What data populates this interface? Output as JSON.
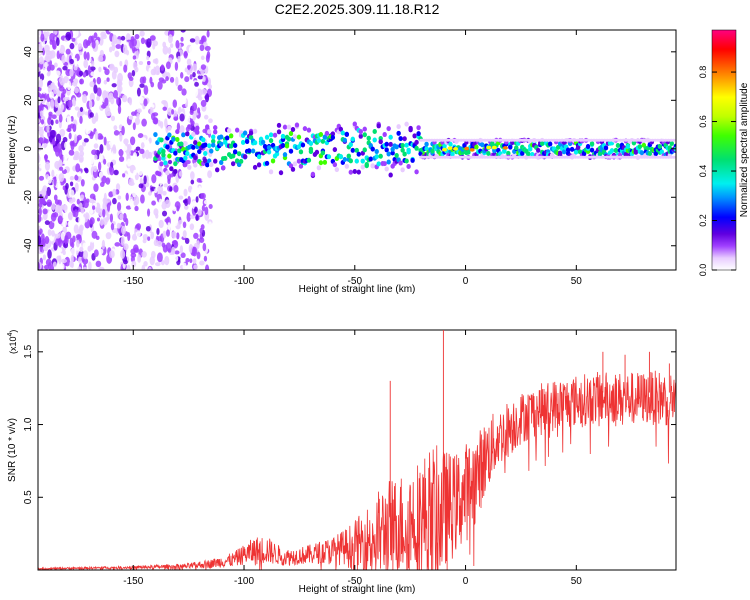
{
  "figure": {
    "title": "C2E2.2025.309.11.18.R12"
  },
  "chart_data": [
    {
      "type": "heatmap",
      "xlabel": "Height of straight line (km)",
      "ylabel": "Frequency (Hz)",
      "xlim": [
        -193,
        95
      ],
      "ylim": [
        -50,
        49
      ],
      "x_ticks": [
        -150,
        -100,
        -50,
        0,
        50
      ],
      "x_tick_labels": [
        "-150",
        "-100",
        "-50",
        "0",
        "50"
      ],
      "y_ticks": [
        -40,
        -20,
        0,
        20,
        40
      ],
      "y_tick_labels": [
        "-40",
        "-20",
        "0",
        "20",
        "40"
      ],
      "colorbar": {
        "label": "Normalized spectral amplitude",
        "range": [
          0,
          0.97
        ],
        "ticks": [
          0.0,
          0.2,
          0.4,
          0.6,
          0.8
        ],
        "tick_labels": [
          "0.0",
          "0.2",
          "0.4",
          "0.6",
          "0.8"
        ],
        "colors": [
          "#ffffff",
          "#e8ccff",
          "#a040ff",
          "#6000e0",
          "#0000ff",
          "#0090ff",
          "#00f0f0",
          "#00e070",
          "#40ff00",
          "#c0ff00",
          "#ffff00",
          "#ff8000",
          "#ff0000",
          "#ff0080"
        ]
      },
      "features": [
        {
          "region": "scattered noise",
          "x_range": [
            -193,
            -115
          ],
          "y_range": [
            -50,
            49
          ],
          "amplitude": 0.1
        },
        {
          "region": "central band",
          "x_range": [
            -140,
            95
          ],
          "center_frequency": 0,
          "half_width": 4,
          "amplitude": 0.45
        },
        {
          "region": "strong peaks",
          "x_range": [
            -12,
            20
          ],
          "center_frequency": 0,
          "amplitude": 0.85
        }
      ]
    },
    {
      "type": "line",
      "xlabel": "Height of straight line (km)",
      "ylabel": "SNR (10 * v/v)",
      "y_multiplier": "(x10",
      "y_multiplier_exp": "4",
      "y_multiplier_close": ")",
      "xlim": [
        -193,
        95
      ],
      "ylim": [
        0,
        1.65
      ],
      "x_ticks": [
        -150,
        -100,
        -50,
        0,
        50
      ],
      "x_tick_labels": [
        "-150",
        "-100",
        "-50",
        "0",
        "50"
      ],
      "y_ticks": [
        0.5,
        1.0,
        1.5
      ],
      "y_tick_labels": [
        "0.5",
        "1.0",
        "1.5"
      ],
      "color": "#ee3333",
      "envelope": {
        "x": [
          -193,
          -150,
          -125,
          -115,
          -105,
          -100,
          -95,
          -90,
          -85,
          -80,
          -75,
          -70,
          -65,
          -60,
          -55,
          -50,
          -45,
          -40,
          -35,
          -30,
          -25,
          -20,
          -15,
          -10,
          -5,
          0,
          5,
          10,
          15,
          20,
          25,
          30,
          40,
          50,
          60,
          70,
          80,
          95
        ],
        "y_mean": [
          0.01,
          0.02,
          0.03,
          0.05,
          0.08,
          0.12,
          0.15,
          0.16,
          0.12,
          0.1,
          0.11,
          0.12,
          0.14,
          0.15,
          0.18,
          0.2,
          0.25,
          0.3,
          0.35,
          0.38,
          0.42,
          0.45,
          0.47,
          0.48,
          0.52,
          0.6,
          0.7,
          0.85,
          0.95,
          1.02,
          1.08,
          1.12,
          1.17,
          1.2,
          1.22,
          1.22,
          1.22,
          1.22
        ],
        "y_spread": [
          0.005,
          0.01,
          0.02,
          0.03,
          0.05,
          0.07,
          0.1,
          0.1,
          0.07,
          0.06,
          0.06,
          0.07,
          0.08,
          0.1,
          0.12,
          0.18,
          0.22,
          0.3,
          0.35,
          0.35,
          0.38,
          0.42,
          0.5,
          0.45,
          0.35,
          0.35,
          0.3,
          0.25,
          0.2,
          0.2,
          0.18,
          0.18,
          0.18,
          0.18,
          0.18,
          0.18,
          0.18,
          0.2
        ]
      },
      "spikes": [
        {
          "x": -10,
          "y": 1.65
        },
        {
          "x": -34,
          "y": 1.3
        },
        {
          "x": 62,
          "y": 1.5
        },
        {
          "x": 72,
          "y": 1.48
        },
        {
          "x": 83,
          "y": 1.5
        },
        {
          "x": 92,
          "y": 1.42
        }
      ]
    }
  ]
}
